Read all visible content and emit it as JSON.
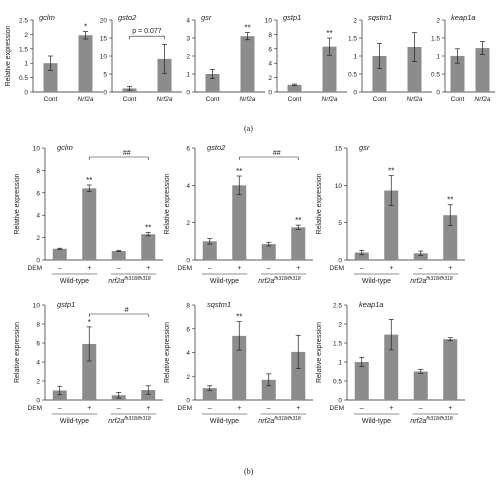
{
  "panel_labels": {
    "a": "(a)",
    "b": "(b)"
  },
  "row_a_ylabel": "Relative expression",
  "row_b_ylabel": "Relative expression",
  "row_b_xgroups": {
    "treatment_label": "DEM",
    "minus": "–",
    "plus": "+",
    "group1": "Wild-type",
    "group2_base": "nrf2a",
    "group2_sup": "fh318/fh318"
  },
  "colors": {
    "bar": "#8c8c8c",
    "axis": "#222222"
  },
  "chart_data": [
    {
      "type": "bar",
      "title": "gclm",
      "categories": [
        "Cont",
        "Nrf2a"
      ],
      "values": [
        1.0,
        1.97
      ],
      "errors": [
        0.25,
        0.13
      ],
      "ylim": [
        0,
        2.5
      ],
      "yticks": [
        0,
        0.5,
        1,
        1.5,
        2,
        2.5
      ],
      "ytick_labels": [
        "0",
        "0.5",
        "1",
        "1.5",
        "2",
        "2.5"
      ],
      "sig": [
        "",
        "*"
      ]
    },
    {
      "type": "bar",
      "title": "gsto2",
      "categories": [
        "Cont",
        "Nrf2a"
      ],
      "values": [
        1.0,
        9.2
      ],
      "errors": [
        0.5,
        4.0
      ],
      "ylim": [
        0,
        20
      ],
      "yticks": [
        0,
        5,
        10,
        15,
        20
      ],
      "ytick_labels": [
        "0",
        "5",
        "10",
        "15",
        "20"
      ],
      "sig": [
        "",
        ""
      ],
      "annotation": "p = 0.077"
    },
    {
      "type": "bar",
      "title": "gsr",
      "categories": [
        "Cont",
        "Nrf2a"
      ],
      "values": [
        1.0,
        3.1
      ],
      "errors": [
        0.25,
        0.2
      ],
      "ylim": [
        0,
        4
      ],
      "yticks": [
        0,
        1,
        2,
        3,
        4
      ],
      "ytick_labels": [
        "0",
        "1",
        "2",
        "3",
        "4"
      ],
      "sig": [
        "",
        "**"
      ]
    },
    {
      "type": "bar",
      "title": "gstp1",
      "categories": [
        "Cont",
        "Nrf2a"
      ],
      "values": [
        1.0,
        6.3
      ],
      "errors": [
        0.1,
        1.2
      ],
      "ylim": [
        0,
        10
      ],
      "yticks": [
        0,
        2,
        4,
        6,
        8,
        10
      ],
      "ytick_labels": [
        "0",
        "2",
        "4",
        "6",
        "8",
        "10"
      ],
      "sig": [
        "",
        "**"
      ]
    },
    {
      "type": "bar",
      "title": "sqstm1",
      "categories": [
        "Cont",
        "Nrf2a"
      ],
      "values": [
        1.0,
        1.25
      ],
      "errors": [
        0.35,
        0.4
      ],
      "ylim": [
        0,
        2
      ],
      "yticks": [
        0,
        0.5,
        1,
        1.5,
        2
      ],
      "ytick_labels": [
        "0",
        "0.5",
        "1",
        "1.5",
        "2"
      ],
      "sig": [
        "",
        ""
      ]
    },
    {
      "type": "bar",
      "title": "keap1a",
      "categories": [
        "Cont",
        "Nrf2a"
      ],
      "values": [
        1.0,
        1.22
      ],
      "errors": [
        0.2,
        0.18
      ],
      "ylim": [
        0,
        2
      ],
      "yticks": [
        0,
        0.5,
        1,
        1.5,
        2
      ],
      "ytick_labels": [
        "0",
        "0.5",
        "1",
        "1.5",
        "2"
      ],
      "sig": [
        "",
        ""
      ]
    },
    {
      "type": "bar",
      "title": "gclm",
      "categories": [
        "Wild-type DEM –",
        "Wild-type DEM +",
        "nrf2a DEM –",
        "nrf2a DEM +"
      ],
      "values": [
        1.0,
        6.4,
        0.8,
        2.3
      ],
      "errors": [
        0.05,
        0.3,
        0.05,
        0.15
      ],
      "ylim": [
        0,
        10
      ],
      "yticks": [
        0,
        2,
        4,
        6,
        8,
        10
      ],
      "ytick_labels": [
        "0",
        "2",
        "4",
        "6",
        "8",
        "10"
      ],
      "sig": [
        "",
        "**",
        "",
        "**"
      ],
      "bracket": "##"
    },
    {
      "type": "bar",
      "title": "gsto2",
      "categories": [
        "Wild-type DEM –",
        "Wild-type DEM +",
        "nrf2a DEM –",
        "nrf2a DEM +"
      ],
      "values": [
        1.0,
        4.0,
        0.85,
        1.75
      ],
      "errors": [
        0.15,
        0.5,
        0.1,
        0.12
      ],
      "ylim": [
        0,
        6
      ],
      "yticks": [
        0,
        2,
        4,
        6
      ],
      "ytick_labels": [
        "0",
        "2",
        "4",
        "6"
      ],
      "sig": [
        "",
        "**",
        "",
        "**"
      ],
      "bracket": "##"
    },
    {
      "type": "bar",
      "title": "gsr",
      "categories": [
        "Wild-type DEM –",
        "Wild-type DEM +",
        "nrf2a DEM –",
        "nrf2a DEM +"
      ],
      "values": [
        1.0,
        9.3,
        0.9,
        6.0
      ],
      "errors": [
        0.3,
        2.0,
        0.3,
        1.4
      ],
      "ylim": [
        0,
        15
      ],
      "yticks": [
        0,
        5,
        10,
        15
      ],
      "ytick_labels": [
        "0",
        "5",
        "10",
        "15"
      ],
      "sig": [
        "",
        "**",
        "",
        "**"
      ]
    },
    {
      "type": "bar",
      "title": "gstp1",
      "categories": [
        "Wild-type DEM –",
        "Wild-type DEM +",
        "nrf2a DEM –",
        "nrf2a DEM +"
      ],
      "values": [
        1.0,
        5.9,
        0.5,
        1.05
      ],
      "errors": [
        0.45,
        1.8,
        0.3,
        0.45
      ],
      "ylim": [
        0,
        10
      ],
      "yticks": [
        0,
        2,
        4,
        6,
        8,
        10
      ],
      "ytick_labels": [
        "0",
        "2",
        "4",
        "6",
        "8",
        "10"
      ],
      "sig": [
        "",
        "*",
        "",
        ""
      ],
      "bracket": "#"
    },
    {
      "type": "bar",
      "title": "sqstm1",
      "categories": [
        "Wild-type DEM –",
        "Wild-type DEM +",
        "nrf2a DEM –",
        "nrf2a DEM +"
      ],
      "values": [
        1.0,
        5.4,
        1.7,
        4.05
      ],
      "errors": [
        0.2,
        1.2,
        0.5,
        1.4
      ],
      "ylim": [
        0,
        8
      ],
      "yticks": [
        0,
        2,
        4,
        6,
        8
      ],
      "ytick_labels": [
        "0",
        "2",
        "4",
        "6",
        "8"
      ],
      "sig": [
        "",
        "**",
        "",
        ""
      ]
    },
    {
      "type": "bar",
      "title": "keap1a",
      "categories": [
        "Wild-type DEM –",
        "Wild-type DEM +",
        "nrf2a DEM –",
        "nrf2a DEM +"
      ],
      "values": [
        1.0,
        1.72,
        0.75,
        1.6
      ],
      "errors": [
        0.12,
        0.4,
        0.05,
        0.04
      ],
      "ylim": [
        0,
        2.5
      ],
      "yticks": [
        0,
        0.5,
        1,
        1.5,
        2,
        2.5
      ],
      "ytick_labels": [
        "0",
        "0.5",
        "1",
        "1.5",
        "2",
        "2.5"
      ],
      "sig": [
        "",
        "",
        "",
        ""
      ]
    }
  ]
}
